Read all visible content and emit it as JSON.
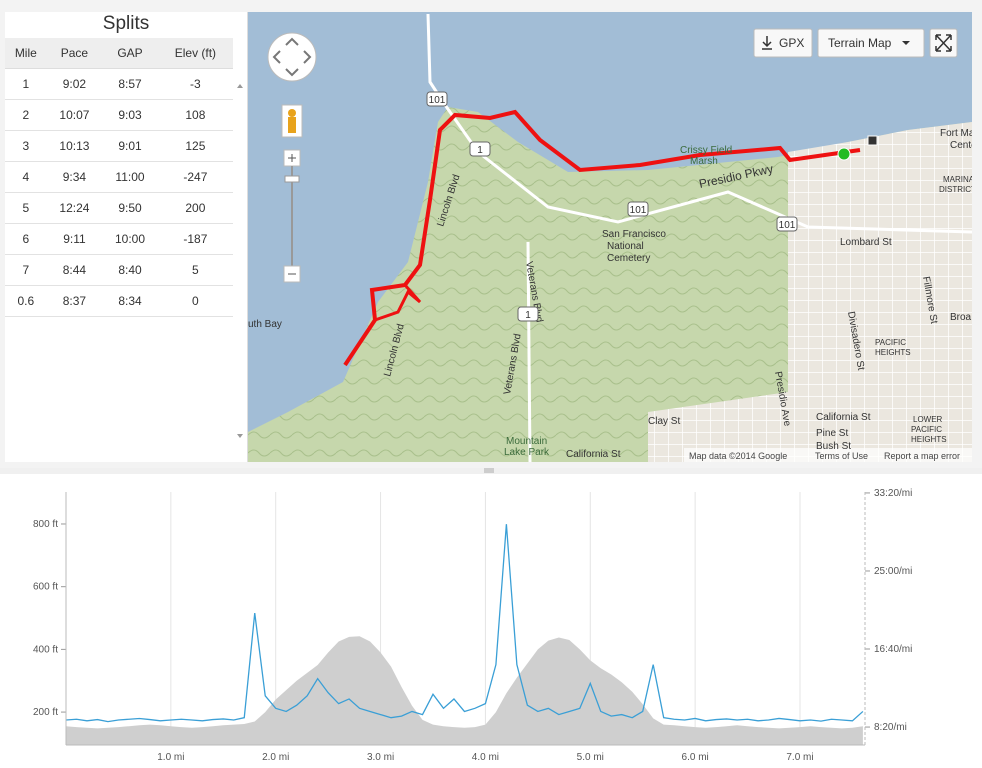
{
  "splits": {
    "title": "Splits",
    "columns": [
      "Mile",
      "Pace",
      "GAP",
      "Elev (ft)"
    ],
    "rows": [
      [
        "1",
        "9:02",
        "8:57",
        "-3"
      ],
      [
        "2",
        "10:07",
        "9:03",
        "108"
      ],
      [
        "3",
        "10:13",
        "9:01",
        "125"
      ],
      [
        "4",
        "9:34",
        "11:00",
        "-247"
      ],
      [
        "5",
        "12:24",
        "9:50",
        "200"
      ],
      [
        "6",
        "9:11",
        "10:00",
        "-187"
      ],
      [
        "7",
        "8:44",
        "8:40",
        "5"
      ],
      [
        "0.6",
        "8:37",
        "8:34",
        "0"
      ]
    ]
  },
  "map": {
    "buttons": {
      "gpx": "GPX",
      "map_type": "Terrain Map"
    },
    "labels": [
      "101",
      "1",
      "Crissy Field",
      "Marsh",
      "Presidio Pkwy",
      "101",
      "San Francisco",
      "National",
      "Cemetery",
      "Lincoln Blvd",
      "Veterans Blvd",
      "1",
      "Lincoln Blvd",
      "Veterans Blvd",
      "Fort Mason",
      "Center",
      "MARINA",
      "DISTRICT",
      "101",
      "Lombard St",
      "Divisadero St",
      "Fillmore St",
      "Broa",
      "PACIFIC",
      "HEIGHTS",
      "Presidio Ave",
      "California St",
      "Pine St",
      "Bush St",
      "LOWER",
      "PACIFIC",
      "HEIGHTS",
      "Clay St",
      "Mountain",
      "Lake Park",
      "California St",
      "uth Bay"
    ],
    "attribution": [
      "Map data ©2014 Google",
      "Terms of Use",
      "Report a map error"
    ]
  },
  "chart_data": {
    "type": "line",
    "x": [
      0,
      0.1,
      0.2,
      0.3,
      0.4,
      0.5,
      0.6,
      0.7,
      0.8,
      0.9,
      1,
      1.1,
      1.2,
      1.3,
      1.4,
      1.5,
      1.6,
      1.7,
      1.8,
      1.9,
      2,
      2.1,
      2.2,
      2.3,
      2.4,
      2.5,
      2.6,
      2.7,
      2.8,
      2.9,
      3,
      3.1,
      3.2,
      3.3,
      3.4,
      3.5,
      3.6,
      3.7,
      3.8,
      3.9,
      4,
      4.1,
      4.2,
      4.3,
      4.4,
      4.5,
      4.6,
      4.7,
      4.8,
      4.9,
      5,
      5.1,
      5.2,
      5.3,
      5.4,
      5.5,
      5.6,
      5.7,
      5.8,
      5.9,
      6,
      6.1,
      6.2,
      6.3,
      6.4,
      6.5,
      6.6,
      6.7,
      6.8,
      6.9,
      7,
      7.1,
      7.2,
      7.3,
      7.4,
      7.5,
      7.6
    ],
    "series": [
      {
        "type": "area",
        "color": "#cfcfcf",
        "values": [
          155,
          152,
          150,
          148,
          150,
          152,
          155,
          158,
          160,
          158,
          155,
          152,
          150,
          152,
          155,
          158,
          160,
          162,
          170,
          200,
          240,
          270,
          300,
          325,
          350,
          390,
          425,
          440,
          442,
          425,
          390,
          345,
          280,
          220,
          175,
          160,
          155,
          152,
          150,
          152,
          160,
          200,
          260,
          310,
          355,
          400,
          428,
          438,
          430,
          400,
          365,
          340,
          320,
          295,
          265,
          225,
          180,
          160,
          158,
          155,
          152,
          150,
          152,
          155,
          158,
          155,
          152,
          150,
          148,
          150,
          152,
          155,
          152,
          150,
          148,
          150,
          155
        ]
      },
      {
        "type": "line",
        "color": "#3a9fd6",
        "axis": "y2",
        "values": [
          545,
          550,
          540,
          548,
          535,
          545,
          550,
          555,
          548,
          540,
          545,
          550,
          545,
          540,
          548,
          552,
          545,
          560,
          1230,
          700,
          620,
          600,
          640,
          700,
          810,
          720,
          650,
          680,
          620,
          600,
          580,
          560,
          570,
          600,
          580,
          710,
          620,
          680,
          600,
          620,
          650,
          900,
          1800,
          900,
          640,
          600,
          620,
          580,
          600,
          620,
          780,
          600,
          570,
          580,
          560,
          600,
          900,
          560,
          550,
          545,
          555,
          540,
          548,
          552,
          545,
          550,
          540,
          545,
          555,
          548,
          540,
          545,
          538,
          550,
          545,
          540,
          600
        ]
      }
    ],
    "xlim": [
      0,
      7.62
    ],
    "xticks": [
      {
        "value": 1,
        "label": "1.0 mi"
      },
      {
        "value": 2,
        "label": "2.0 mi"
      },
      {
        "value": 3,
        "label": "3.0 mi"
      },
      {
        "value": 4,
        "label": "4.0 mi"
      },
      {
        "value": 5,
        "label": "5.0 mi"
      },
      {
        "value": 6,
        "label": "6.0 mi"
      },
      {
        "value": 7,
        "label": "7.0 mi"
      }
    ],
    "ylim": [
      95,
      902
    ],
    "yticks": [
      {
        "value": 200,
        "label": "200 ft"
      },
      {
        "value": 400,
        "label": "400 ft"
      },
      {
        "value": 600,
        "label": "600 ft"
      },
      {
        "value": 800,
        "label": "800 ft"
      }
    ],
    "y2lim": [
      385,
      2006
    ],
    "y2ticks": [
      {
        "value": 500,
        "label": "8:20/mi"
      },
      {
        "value": 1000,
        "label": "16:40/mi"
      },
      {
        "value": 1500,
        "label": "25:00/mi"
      },
      {
        "value": 2000,
        "label": "33:20/mi"
      }
    ],
    "grid": true
  }
}
